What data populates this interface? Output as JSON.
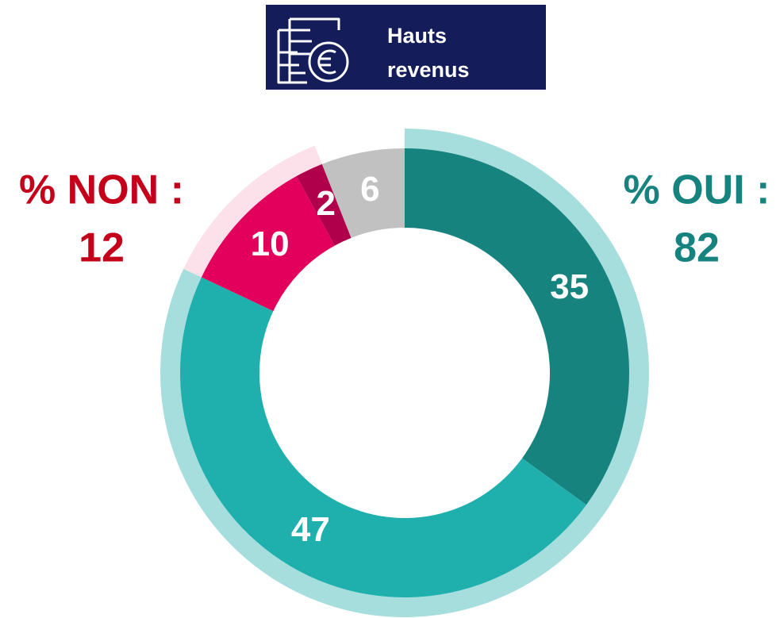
{
  "chart_data": {
    "type": "donut",
    "title": "Hauts revenus",
    "values": [
      35,
      47,
      10,
      2,
      6
    ],
    "colors": [
      "#17837f",
      "#1fb0ae",
      "#e2005c",
      "#b1004b",
      "#c1c1c1"
    ],
    "groups": [
      {
        "name": "% OUI :",
        "value": 82,
        "color": "#a6dedd",
        "text_color": "#17837f"
      },
      {
        "name": "% NON :",
        "value": 12,
        "color": "#fde1ea",
        "text_color": "#c4001a"
      }
    ]
  }
}
